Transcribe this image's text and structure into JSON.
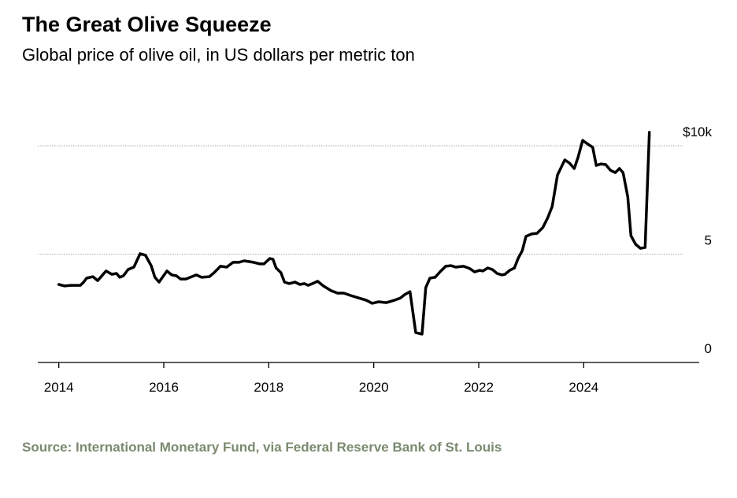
{
  "chart_data": {
    "type": "line",
    "title": "The Great Olive Squeeze",
    "subtitle": "Global price of olive oil, in US dollars per metric ton",
    "source": "Source: International Monetary Fund, via Federal Reserve Bank of St. Louis",
    "color": "#000000",
    "grid": true,
    "xlim": [
      2013.6,
      2026.2
    ],
    "xticks": [
      2014,
      2016,
      2018,
      2020,
      2022,
      2024
    ],
    "ylim": [
      0,
      10000
    ],
    "yticks": [
      0,
      {
        "value": 5000,
        "label": "5"
      },
      {
        "value": 10000,
        "label": "$10k"
      }
    ],
    "x": [
      2014.0,
      2014.11,
      2014.23,
      2014.41,
      2014.47,
      2014.53,
      2014.65,
      2014.74,
      2014.9,
      2015.01,
      2015.1,
      2015.16,
      2015.23,
      2015.32,
      2015.43,
      2015.55,
      2015.65,
      2015.76,
      2015.83,
      2015.91,
      2016.06,
      2016.15,
      2016.24,
      2016.32,
      2016.42,
      2016.62,
      2016.72,
      2016.87,
      2016.96,
      2017.08,
      2017.2,
      2017.32,
      2017.43,
      2017.53,
      2017.71,
      2017.83,
      2017.91,
      2018.02,
      2018.08,
      2018.14,
      2018.23,
      2018.3,
      2018.39,
      2018.5,
      2018.59,
      2018.68,
      2018.75,
      2018.86,
      2018.93,
      2019.04,
      2019.19,
      2019.31,
      2019.43,
      2019.56,
      2019.71,
      2019.86,
      2019.97,
      2020.09,
      2020.24,
      2020.39,
      2020.51,
      2020.59,
      2020.69,
      2020.8,
      2020.92,
      2020.99,
      2021.07,
      2021.17,
      2021.26,
      2021.37,
      2021.47,
      2021.56,
      2021.71,
      2021.83,
      2021.92,
      2022.02,
      2022.08,
      2022.17,
      2022.26,
      2022.35,
      2022.44,
      2022.5,
      2022.59,
      2022.68,
      2022.75,
      2022.83,
      2022.9,
      2023.01,
      2023.11,
      2023.22,
      2023.31,
      2023.4,
      2023.5,
      2023.64,
      2023.73,
      2023.82,
      2023.89,
      2023.98,
      2024.06,
      2024.17,
      2024.24,
      2024.33,
      2024.42,
      2024.51,
      2024.6,
      2024.68,
      2024.75,
      2024.84,
      2024.9,
      2024.99,
      2025.08,
      2025.17,
      2025.25
    ],
    "values": [
      3600,
      3530,
      3560,
      3560,
      3700,
      3890,
      3960,
      3780,
      4220,
      4070,
      4110,
      3930,
      4000,
      4290,
      4400,
      5020,
      4950,
      4470,
      3930,
      3710,
      4220,
      4040,
      4000,
      3850,
      3850,
      4040,
      3930,
      3960,
      4150,
      4440,
      4400,
      4620,
      4620,
      4690,
      4620,
      4550,
      4550,
      4800,
      4760,
      4360,
      4150,
      3710,
      3640,
      3710,
      3600,
      3640,
      3560,
      3670,
      3750,
      3530,
      3310,
      3200,
      3200,
      3090,
      2980,
      2870,
      2730,
      2800,
      2760,
      2870,
      2980,
      3130,
      3270,
      1380,
      1310,
      3450,
      3890,
      3930,
      4180,
      4440,
      4470,
      4400,
      4440,
      4330,
      4180,
      4250,
      4220,
      4360,
      4290,
      4110,
      4040,
      4070,
      4250,
      4360,
      4800,
      5160,
      5820,
      5930,
      5960,
      6220,
      6650,
      7200,
      8650,
      9350,
      9200,
      8950,
      9450,
      10250,
      10110,
      9930,
      9090,
      9160,
      9130,
      8870,
      8760,
      8950,
      8760,
      7640,
      5850,
      5450,
      5270,
      5310,
      10620
    ]
  }
}
